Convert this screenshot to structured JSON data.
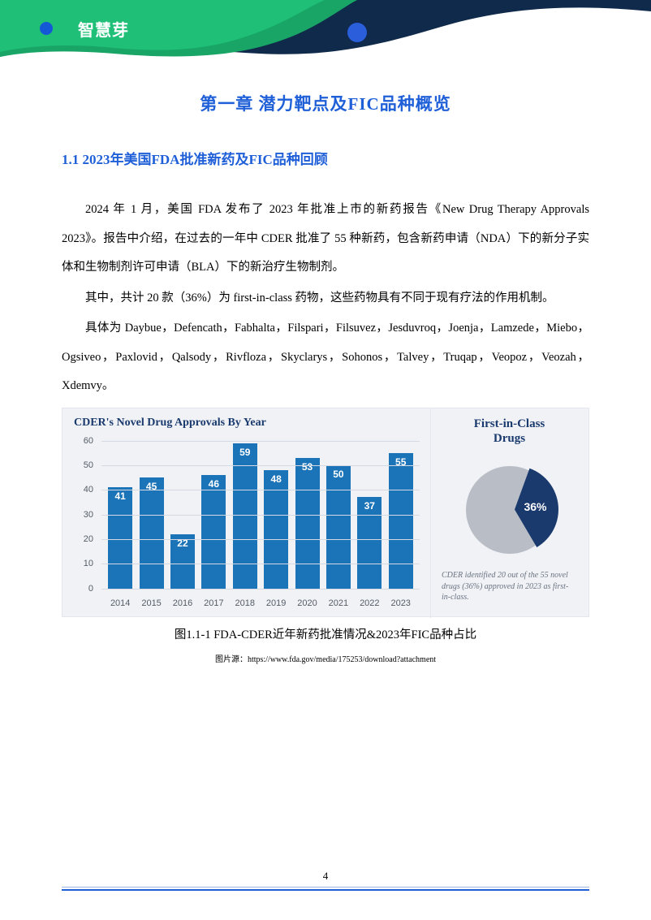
{
  "header": {
    "brand_text": "智慧芽",
    "wave_dark": "#0f2a4a",
    "wave_green": "#1fbf77",
    "wave_green2": "#18a566",
    "accent_dot": "#2a5edb",
    "logo_node": "#1fbf77",
    "logo_center": "#1558d6",
    "logo_stroke": "#1fbf77"
  },
  "chapter": {
    "title": "第一章  潜力靶点及FIC品种概览",
    "title_color": "#1f5fd8"
  },
  "section": {
    "title": "1.1 2023年美国FDA批准新药及FIC品种回顾",
    "title_color": "#1f5fd8"
  },
  "paragraphs": {
    "p1": "2024 年 1 月，美国 FDA 发布了 2023 年批准上市的新药报告《New Drug Therapy Approvals 2023》。报告中介绍，在过去的一年中 CDER 批准了 55 种新药，包含新药申请（NDA）下的新分子实体和生物制剂许可申请（BLA）下的新治疗生物制剂。",
    "p2": "其中，共计 20 款（36%）为 first-in-class 药物，这些药物具有不同于现有疗法的作用机制。",
    "p3": "具体为 Daybue，Defencath，Fabhalta，Filspari，Filsuvez，Jesduvroq，Joenja，Lamzede，Miebo，Ogsiveo，Paxlovid，Qalsody，Rivfloza，Skyclarys，Sohonos，Talvey，Truqap，Veopoz，Veozah， Xdemvy。"
  },
  "chart": {
    "panel_bg": "#f0f2f6",
    "panel_border": "#e3e6ec",
    "left_title": "CDER's Novel Drug Approvals By Year",
    "title_color": "#1a3a6e",
    "bar_color": "#1b73b8",
    "grid_color": "#d5d9e2",
    "axis_text_color": "#555b66",
    "y_ticks": [
      0,
      10,
      20,
      30,
      40,
      50,
      60
    ],
    "y_max": 62,
    "years": [
      "2014",
      "2015",
      "2016",
      "2017",
      "2018",
      "2019",
      "2020",
      "2021",
      "2022",
      "2023"
    ],
    "values": [
      41,
      45,
      22,
      46,
      59,
      48,
      53,
      50,
      37,
      55
    ],
    "label_color": "#ffffff",
    "pie": {
      "title_line1": "First-in-Class",
      "title_line2": "Drugs",
      "slice_pct": 36,
      "slice_color": "#1a3a6e",
      "rest_color": "#b9bdc6",
      "pct_text": "36%",
      "caption": "CDER identified 20 out of the 55 novel drugs (36%) approved in 2023 as first-in-class."
    }
  },
  "figure": {
    "caption": "图1.1-1 FDA-CDER近年新药批准情况&2023年FIC品种占比",
    "source_prefix": "图片源：",
    "source_url": "https://www.fda.gov/media/175253/download?attachment"
  },
  "page": {
    "number": "4",
    "footer_line_color": "#1f5fd8"
  }
}
